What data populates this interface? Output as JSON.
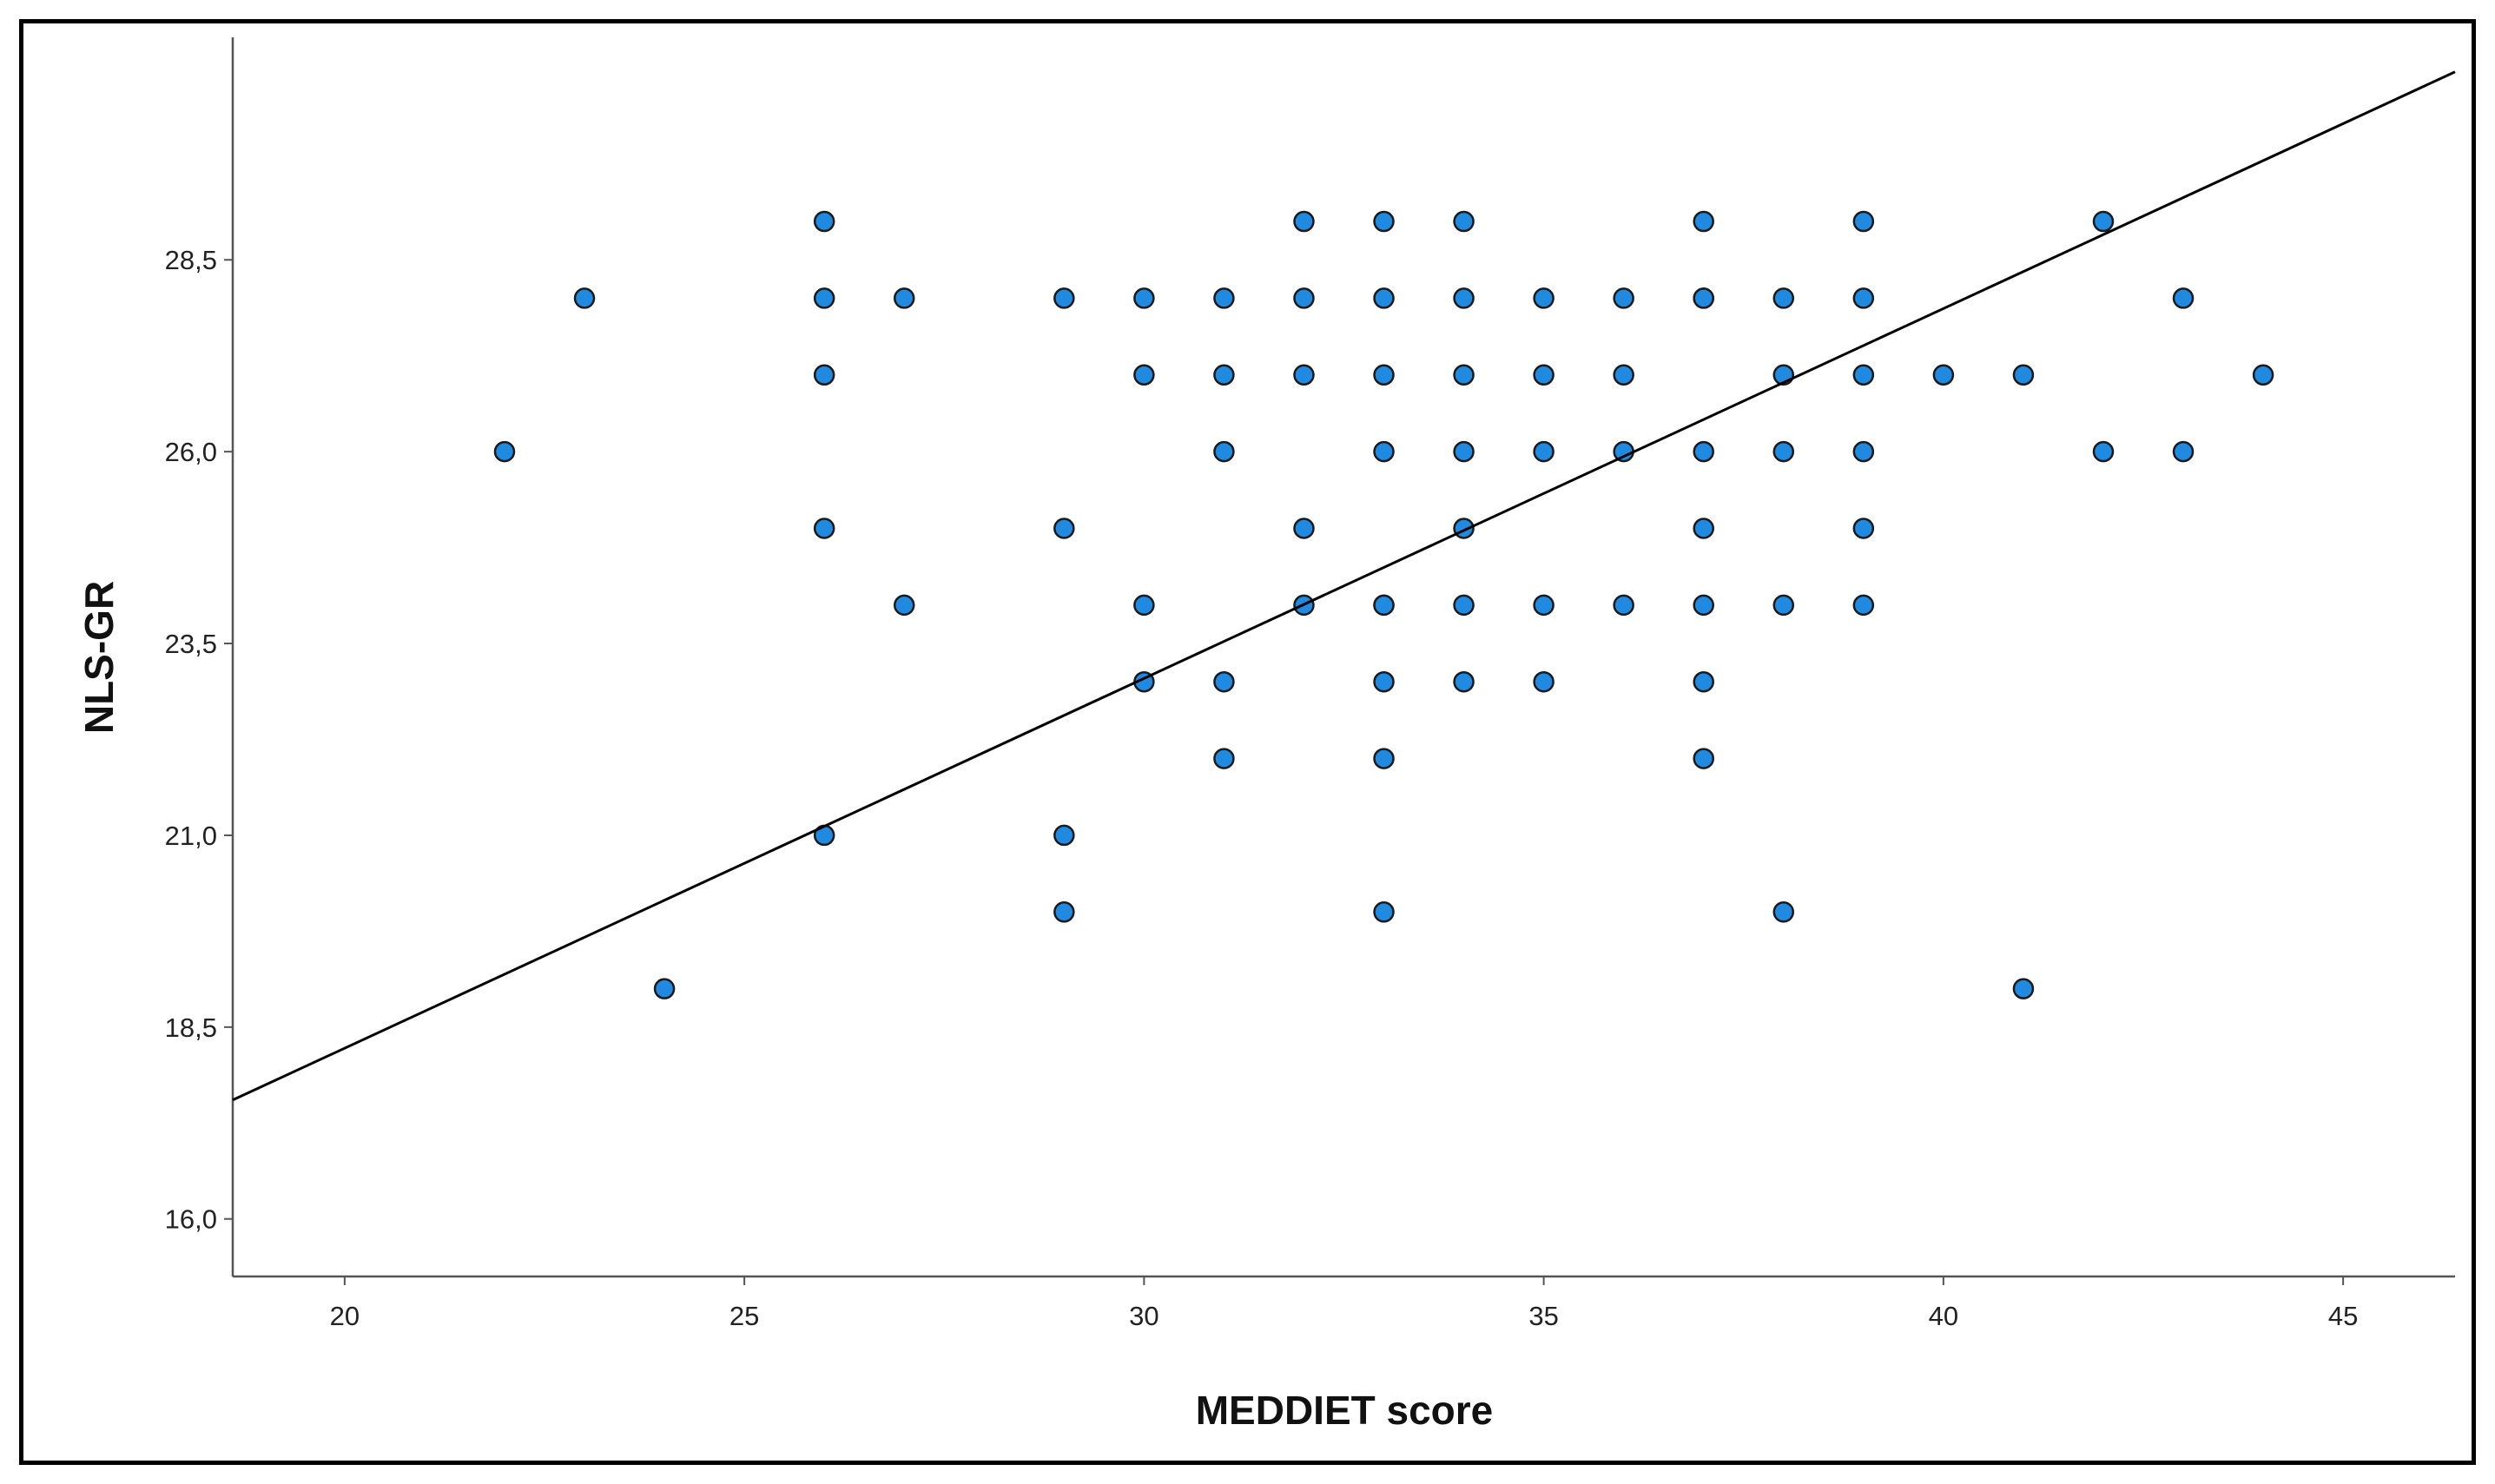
{
  "chart_data": {
    "type": "scatter",
    "title": "",
    "xlabel": "MEDDIET score",
    "ylabel": "NLS-GR",
    "xlim": [
      18.6,
      46.4
    ],
    "ylim": [
      15.25,
      31.4
    ],
    "xticks": [
      20,
      25,
      30,
      35,
      40,
      45
    ],
    "xtick_labels": [
      "20",
      "25",
      "30",
      "35",
      "40",
      "45"
    ],
    "yticks": [
      16.0,
      18.5,
      21.0,
      23.5,
      26.0,
      28.5
    ],
    "ytick_labels": [
      "16,0",
      "18,5",
      "21,0",
      "23,5",
      "26,0",
      "28,5"
    ],
    "grid": false,
    "legend": "none",
    "point_color": "#1f8ae0",
    "point_edge_color": "#1a1a1a",
    "line_color": "#000000",
    "fit_line": {
      "x": [
        18.6,
        46.4
      ],
      "y": [
        17.55,
        30.95
      ]
    },
    "series": [
      {
        "x": [
          22,
          23,
          24,
          26,
          26,
          26,
          26,
          26,
          27,
          27,
          29,
          29,
          29,
          29,
          30,
          30,
          30,
          30,
          31,
          31,
          31,
          31,
          31,
          32,
          32,
          32,
          32,
          32,
          33,
          33,
          33,
          33,
          33,
          33,
          33,
          33,
          33,
          34,
          34,
          34,
          34,
          34,
          34,
          34,
          35,
          35,
          35,
          35,
          35,
          36,
          36,
          36,
          36,
          37,
          37,
          37,
          37,
          37,
          37,
          37,
          37,
          38,
          38,
          38,
          38,
          38,
          39,
          39,
          39,
          39,
          39,
          39,
          40,
          41,
          41,
          42,
          42,
          43,
          43,
          44
        ],
        "y": [
          26.0,
          28.0,
          19.0,
          29.0,
          28.0,
          27.0,
          25.0,
          21.0,
          28.0,
          24.0,
          28.0,
          25.0,
          21.0,
          20.0,
          28.0,
          27.0,
          24.0,
          23.0,
          28.0,
          27.0,
          26.0,
          23.0,
          22.0,
          29.0,
          28.0,
          27.0,
          25.0,
          24.0,
          29.0,
          28.0,
          27.0,
          26.0,
          24.0,
          23.0,
          22.0,
          20.0,
          24.0,
          29.0,
          28.0,
          27.0,
          26.0,
          25.0,
          24.0,
          23.0,
          28.0,
          27.0,
          26.0,
          24.0,
          23.0,
          28.0,
          27.0,
          26.0,
          24.0,
          29.0,
          28.0,
          26.0,
          25.0,
          24.0,
          23.0,
          22.0,
          28.0,
          28.0,
          27.0,
          26.0,
          24.0,
          20.0,
          29.0,
          28.0,
          27.0,
          26.0,
          25.0,
          24.0,
          27.0,
          27.0,
          19.0,
          29.0,
          26.0,
          28.0,
          26.0,
          27.0
        ]
      }
    ]
  }
}
